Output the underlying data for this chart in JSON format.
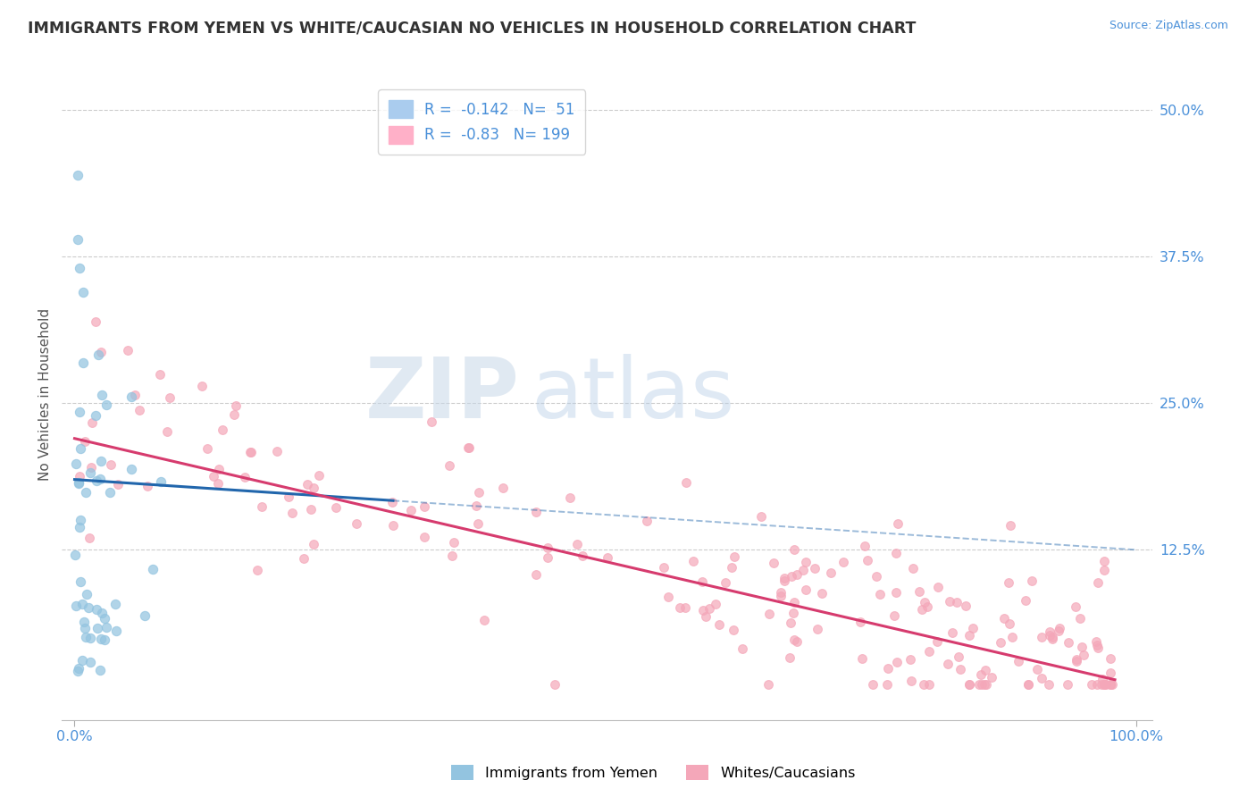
{
  "title": "IMMIGRANTS FROM YEMEN VS WHITE/CAUCASIAN NO VEHICLES IN HOUSEHOLD CORRELATION CHART",
  "source_text": "Source: ZipAtlas.com",
  "ylabel": "No Vehicles in Household",
  "blue_R": -0.142,
  "blue_N": 51,
  "pink_R": -0.83,
  "pink_N": 199,
  "blue_color": "#93c4e0",
  "pink_color": "#f4a7b9",
  "blue_line_color": "#2166ac",
  "pink_line_color": "#d63b6e",
  "legend_label_blue": "Immigrants from Yemen",
  "legend_label_pink": "Whites/Caucasians",
  "watermark_zip": "ZIP",
  "watermark_atlas": "atlas",
  "background_color": "#ffffff",
  "grid_color": "#cccccc",
  "title_color": "#333333",
  "axis_label_color": "#4a90d9",
  "blue_intercept": 0.185,
  "blue_slope": -0.06,
  "pink_intercept": 0.22,
  "pink_slope": -0.21,
  "seed": 42
}
